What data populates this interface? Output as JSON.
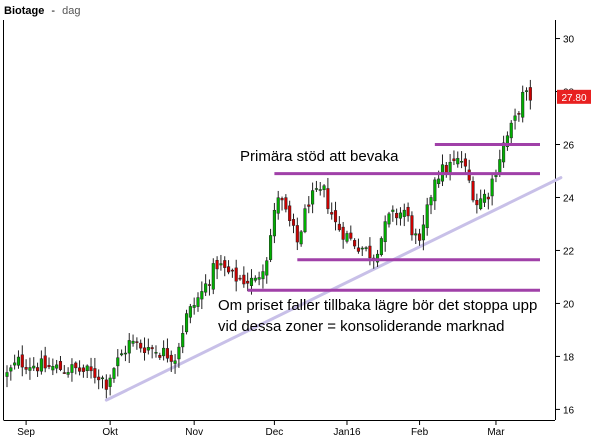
{
  "header": {
    "symbol": "Biotage",
    "separator": "-",
    "interval": "dag"
  },
  "last_price_label": "27.80",
  "colors": {
    "up": "#00b000",
    "down": "#cc0000",
    "wick": "#222222",
    "zone": "#a040a8",
    "trendline": "#c8c0e8",
    "price_tag": "#e82020",
    "background": "#ffffff",
    "frame": "#000000"
  },
  "annotations": {
    "support_title": "Primära stöd att bevaka",
    "note_line1": "Om priset faller tillbaka lägre bör det stoppa upp",
    "note_line2": "vid dessa zoner = konsoliderande marknad"
  },
  "chart_data": {
    "type": "candlestick",
    "title": "Biotage - dag",
    "y_ticks": [
      16,
      18,
      20,
      22,
      24,
      26,
      28,
      30
    ],
    "y_tick_labels": [
      "16",
      "18",
      "20",
      "22",
      "24",
      "26",
      "28",
      "30"
    ],
    "ylim": [
      15.6,
      30.7
    ],
    "x_ticks": [
      {
        "label": "Sep",
        "index": 5
      },
      {
        "label": "Okt",
        "index": 27
      },
      {
        "label": "Nov",
        "index": 49
      },
      {
        "label": "Dec",
        "index": 70
      },
      {
        "label": "Jan16",
        "index": 89
      },
      {
        "label": "Feb",
        "index": 108
      },
      {
        "label": "Mar",
        "index": 128
      }
    ],
    "n_bars": 138,
    "last_price": 27.8,
    "support_zones": [
      {
        "price": 26.0,
        "start_index": 112
      },
      {
        "price": 24.9,
        "start_index": 70
      },
      {
        "price": 21.65,
        "start_index": 76
      },
      {
        "price": 20.5,
        "start_index": 63
      }
    ],
    "trendline": {
      "start": {
        "index": 26,
        "price": 16.35
      },
      "end": {
        "index": 145,
        "price": 24.75
      }
    },
    "close_path": [
      {
        "index": 0,
        "close": 17.3
      },
      {
        "index": 3,
        "close": 17.8
      },
      {
        "index": 10,
        "close": 17.6
      },
      {
        "index": 18,
        "close": 17.5
      },
      {
        "index": 24,
        "close": 17.3
      },
      {
        "index": 26,
        "close": 17.0
      },
      {
        "index": 28,
        "close": 17.6
      },
      {
        "index": 32,
        "close": 18.5
      },
      {
        "index": 38,
        "close": 18.3
      },
      {
        "index": 44,
        "close": 18.0
      },
      {
        "index": 47,
        "close": 19.5
      },
      {
        "index": 51,
        "close": 20.4
      },
      {
        "index": 55,
        "close": 21.5
      },
      {
        "index": 59,
        "close": 21.0
      },
      {
        "index": 65,
        "close": 20.8
      },
      {
        "index": 68,
        "close": 21.8
      },
      {
        "index": 71,
        "close": 24.1
      },
      {
        "index": 76,
        "close": 22.3
      },
      {
        "index": 79,
        "close": 23.9
      },
      {
        "index": 83,
        "close": 24.2
      },
      {
        "index": 86,
        "close": 23.0
      },
      {
        "index": 90,
        "close": 22.4
      },
      {
        "index": 96,
        "close": 21.8
      },
      {
        "index": 100,
        "close": 23.2
      },
      {
        "index": 104,
        "close": 23.5
      },
      {
        "index": 108,
        "close": 22.1
      },
      {
        "index": 112,
        "close": 24.8
      },
      {
        "index": 116,
        "close": 25.2
      },
      {
        "index": 119,
        "close": 25.4
      },
      {
        "index": 123,
        "close": 23.8
      },
      {
        "index": 126,
        "close": 24.2
      },
      {
        "index": 130,
        "close": 26.0
      },
      {
        "index": 133,
        "close": 26.9
      },
      {
        "index": 135,
        "close": 27.8
      },
      {
        "index": 137,
        "close": 27.8
      }
    ],
    "grid": false,
    "legend": "none"
  }
}
